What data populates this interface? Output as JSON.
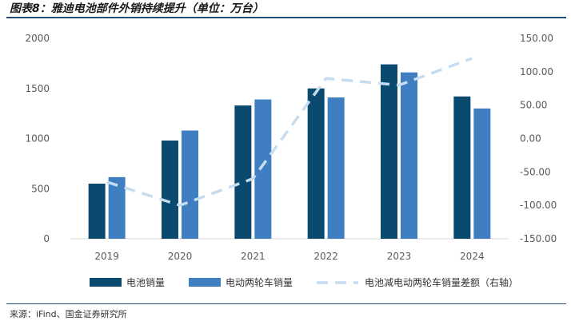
{
  "page": {
    "title": "图表8：雅迪电池部件外销持续提升（单位：万台）",
    "source": "来源：iFind、国金证券研究所"
  },
  "colors": {
    "battery": "#0b4a6f",
    "ev": "#3f7fc1",
    "diff": "#c6dcf0",
    "axis": "#d9d9d9",
    "text": "#595959",
    "rule": "#1f4e79"
  },
  "chart_data": {
    "type": "bar",
    "categories": [
      "2019",
      "2020",
      "2021",
      "2022",
      "2023",
      "2024"
    ],
    "series": [
      {
        "name": "电池销量",
        "type": "bar",
        "axis": "left",
        "values": [
          550,
          980,
          1330,
          1500,
          1740,
          1420
        ]
      },
      {
        "name": "电动两轮车销量",
        "type": "bar",
        "axis": "left",
        "values": [
          615,
          1080,
          1390,
          1410,
          1660,
          1300
        ]
      },
      {
        "name": "电池减电动两轮车销量差额（右轴）",
        "type": "line",
        "style": "dashed",
        "axis": "right",
        "values": [
          -65,
          -100,
          -60,
          90,
          80,
          120
        ]
      }
    ],
    "y_left": {
      "ylim": [
        0,
        2000
      ],
      "ticks": [
        "0",
        "500",
        "1000",
        "1500",
        "2000"
      ]
    },
    "y_right": {
      "ylim": [
        -150,
        150
      ],
      "ticks": [
        "-150.00",
        "-100.00",
        "-50.00",
        "0.00",
        "50.00",
        "100.00",
        "150.00"
      ]
    },
    "legend": {
      "position": "bottom"
    },
    "grid": false
  }
}
